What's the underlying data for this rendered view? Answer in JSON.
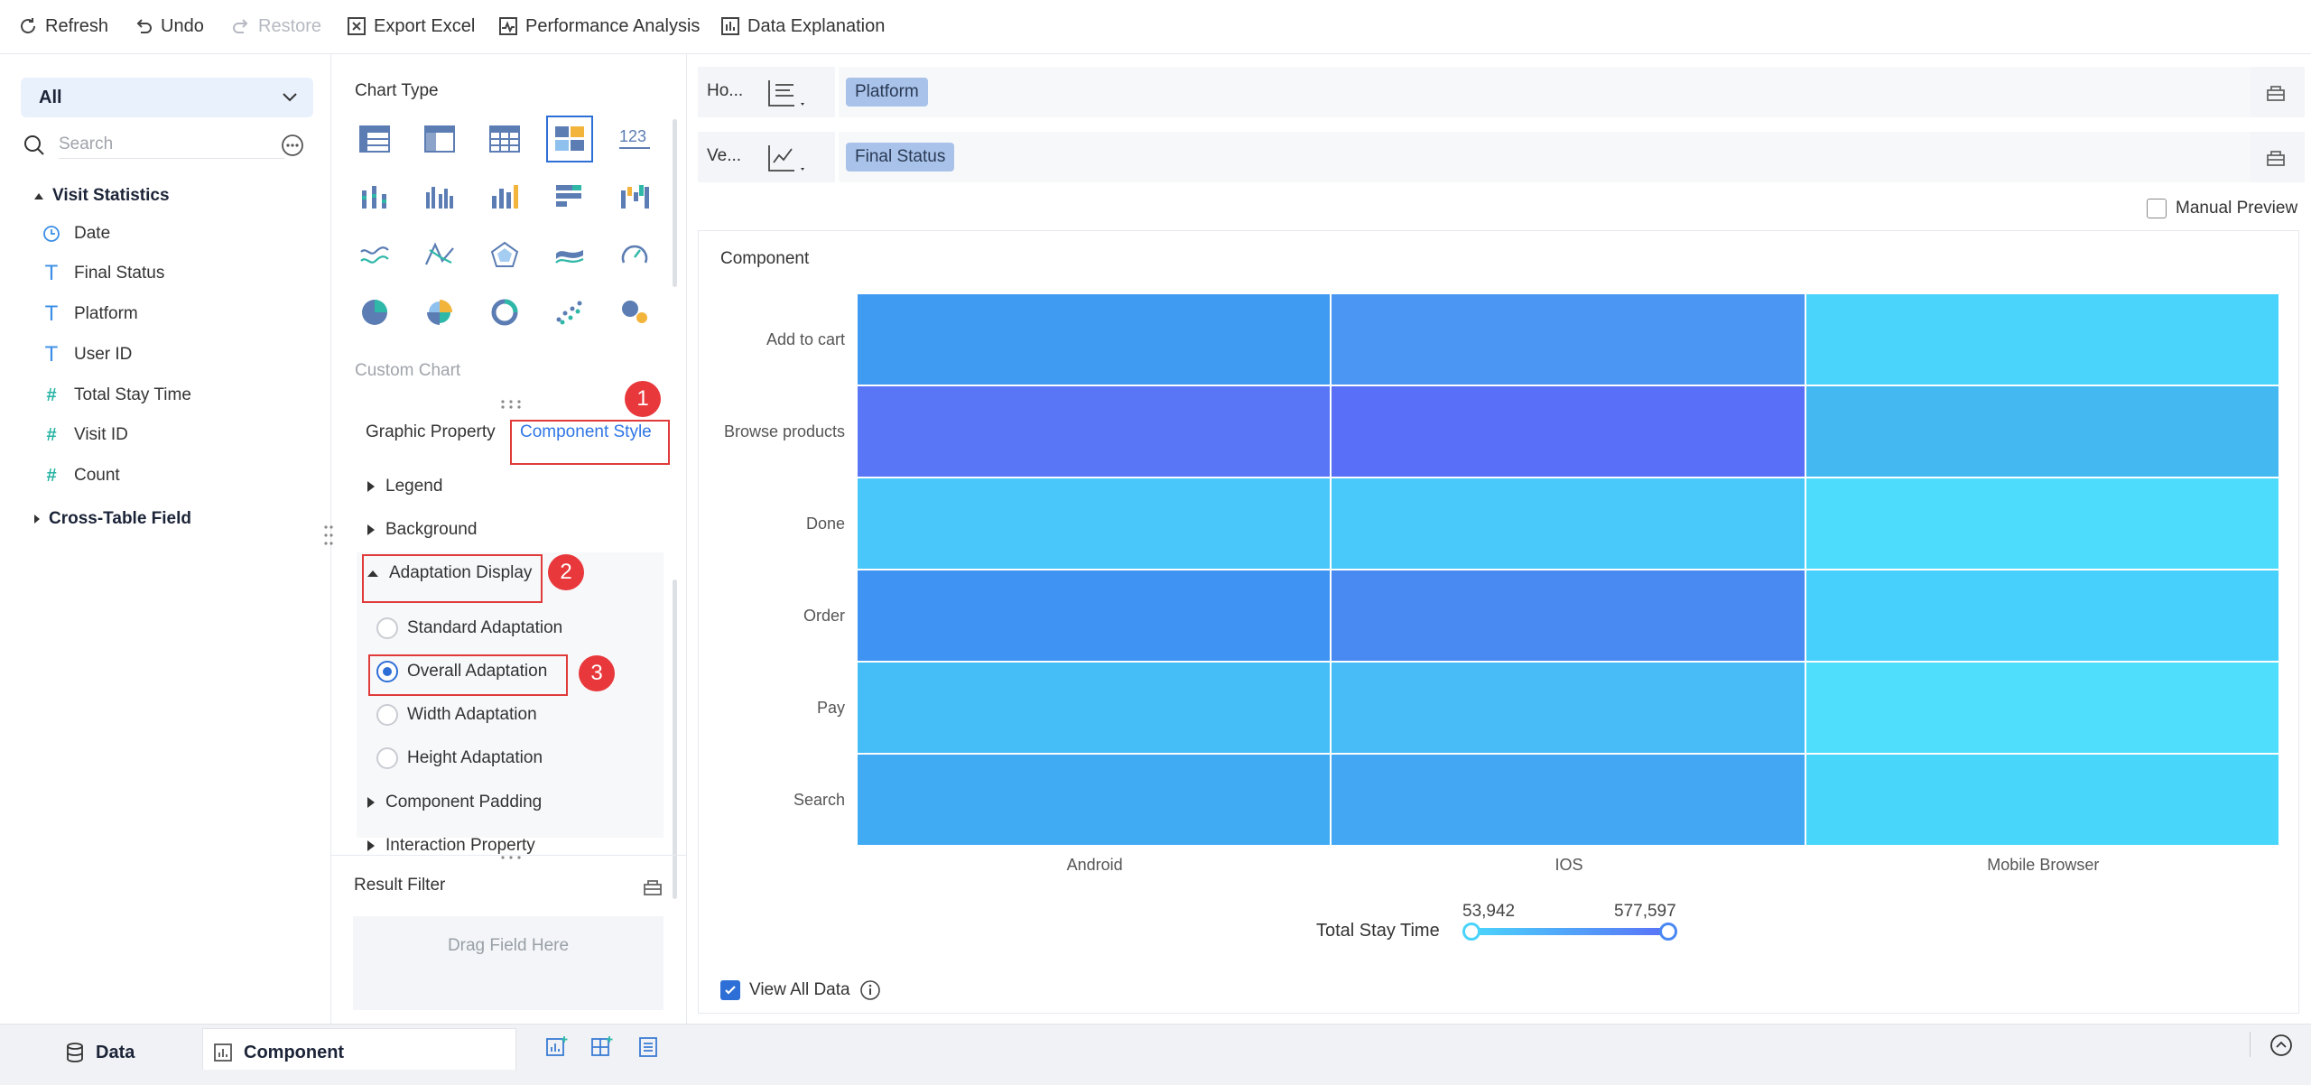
{
  "toolbar": {
    "refresh": "Refresh",
    "undo": "Undo",
    "restore": "Restore",
    "export_excel": "Export Excel",
    "performance_analysis": "Performance Analysis",
    "data_explanation": "Data Explanation"
  },
  "left": {
    "dataset": "All",
    "search_placeholder": "Search",
    "group": "Visit Statistics",
    "fields": [
      {
        "icon": "clock-icon",
        "label": "Date"
      },
      {
        "icon": "text-type-icon",
        "label": "Final Status"
      },
      {
        "icon": "text-type-icon",
        "label": "Platform"
      },
      {
        "icon": "text-type-icon",
        "label": "User ID"
      },
      {
        "icon": "number-type-icon",
        "label": "Total Stay Time"
      },
      {
        "icon": "number-type-icon",
        "label": "Visit ID"
      },
      {
        "icon": "calculated-number-icon",
        "label": "Count"
      }
    ],
    "group2": "Cross-Table Field"
  },
  "mid": {
    "chart_type_title": "Chart Type",
    "custom_chart": "Custom Chart",
    "tab_graphic": "Graphic Property",
    "tab_component": "Component Style",
    "sections": {
      "legend": "Legend",
      "background": "Background",
      "adaptation": "Adaptation Display",
      "padding": "Component Padding",
      "interaction": "Interaction Property"
    },
    "options": {
      "standard": "Standard Adaptation",
      "overall": "Overall Adaptation",
      "width": "Width Adaptation",
      "height": "Height Adaptation"
    },
    "selected_option": "Overall Adaptation",
    "badges": [
      "1",
      "2",
      "3"
    ],
    "result_filter": "Result Filter",
    "drag_field": "Drag Field Here"
  },
  "axes": {
    "horizontal_label": "Ho...",
    "horizontal_field": "Platform",
    "vertical_label": "Ve...",
    "vertical_field": "Final Status"
  },
  "manual_preview": "Manual Preview",
  "chart_panel_title": "Component",
  "chart_data": {
    "type": "heatmap",
    "x_categories": [
      "Android",
      "IOS",
      "Mobile Browser"
    ],
    "y_categories": [
      "Add to cart",
      "Browse products",
      "Done",
      "Order",
      "Pay",
      "Search"
    ],
    "colors": [
      [
        "#3f9af1",
        "#4a96f2",
        "#4ad3fb"
      ],
      [
        "#5876f6",
        "#5a6ff7",
        "#44b8f1"
      ],
      [
        "#49c6fa",
        "#49c8fa",
        "#4edcfc"
      ],
      [
        "#3f93f2",
        "#4889f2",
        "#47d0fb"
      ],
      [
        "#45bdf7",
        "#47bcf7",
        "#4fdffc"
      ],
      [
        "#40aaf3",
        "#43a7f4",
        "#49d6fb"
      ]
    ],
    "legend": {
      "title": "Total Stay Time",
      "min": "53,942",
      "max": "577,597"
    }
  },
  "view_all_data": "View All Data",
  "bottom": {
    "data_tab": "Data",
    "component_tab": "Component"
  }
}
